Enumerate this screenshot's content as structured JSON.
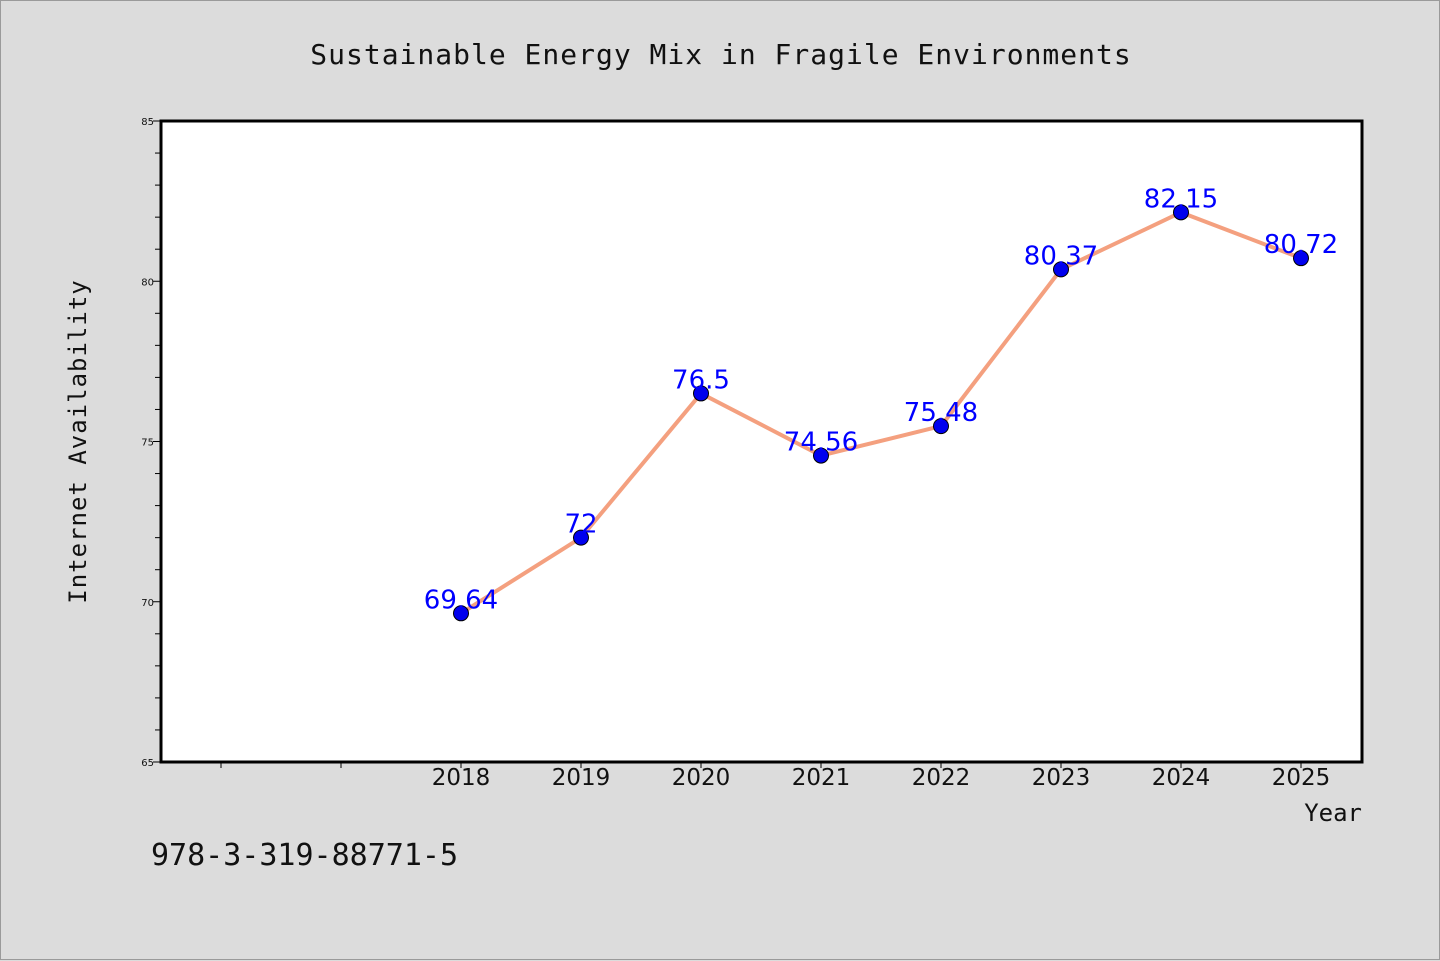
{
  "chart_data": {
    "type": "line",
    "title": "Sustainable Energy Mix in Fragile Environments",
    "xlabel": "Year",
    "ylabel": "Internet Availability",
    "categories": [
      "2018",
      "2019",
      "2020",
      "2021",
      "2022",
      "2023",
      "2024",
      "2025"
    ],
    "series": [
      {
        "values": [
          69.64,
          72,
          76.5,
          74.56,
          75.48,
          80.37,
          82.15,
          80.72
        ],
        "data_labels": [
          "69.64",
          "72",
          "76.5",
          "74.56",
          "75.48",
          "80.37",
          "82.15",
          "80.72"
        ]
      }
    ],
    "ylim": [
      65,
      85
    ],
    "yticks": [
      65,
      70,
      75,
      80,
      85
    ],
    "ytick_labels": [
      "65",
      "70",
      "75",
      "80",
      "85"
    ],
    "grid": false,
    "line_color": "#f4a07f",
    "marker_color": "#0000ee",
    "label_color": "#0000ff"
  },
  "annotation": "978-3-319-88771-5"
}
